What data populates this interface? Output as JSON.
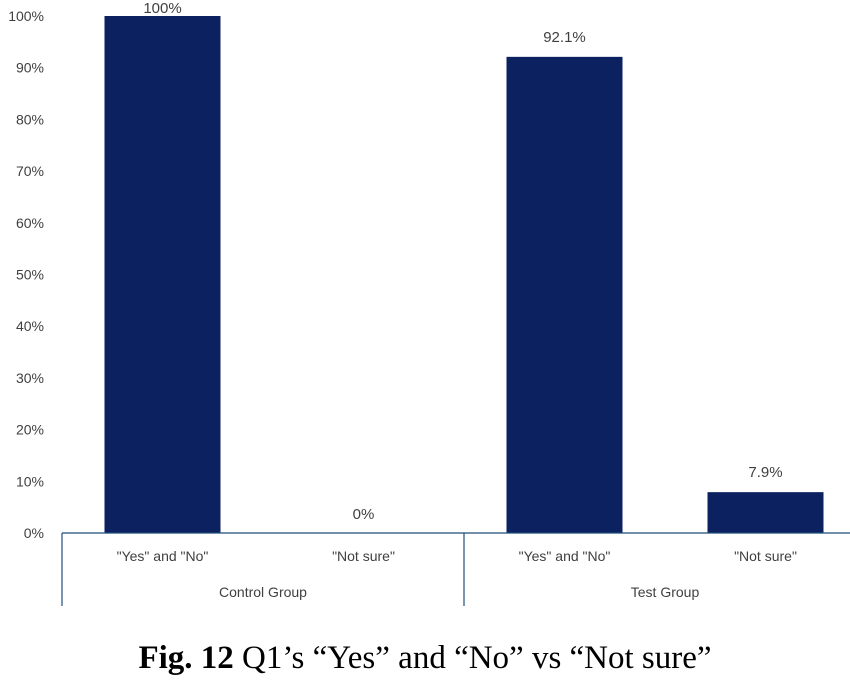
{
  "chart_data": {
    "type": "bar",
    "groups": [
      {
        "name": "Control Group",
        "categories": [
          "\"Yes\" and \"No\"",
          "\"Not sure\""
        ],
        "values": [
          100,
          0
        ],
        "labels": [
          "100%",
          "0%"
        ]
      },
      {
        "name": "Test Group",
        "categories": [
          "\"Yes\" and \"No\"",
          "\"Not sure\""
        ],
        "values": [
          92.1,
          7.9
        ],
        "labels": [
          "92.1%",
          "7.9%"
        ]
      }
    ],
    "yticks": [
      "0%",
      "10%",
      "20%",
      "30%",
      "40%",
      "50%",
      "60%",
      "70%",
      "80%",
      "90%",
      "100%"
    ],
    "ylim": [
      0,
      100
    ],
    "bar_color": "#0b2160",
    "axis_color": "#1f4e79",
    "grid": false
  },
  "caption": {
    "number": "Fig. 12",
    "text": "Q1’s “Yes” and “No” vs “Not sure”"
  }
}
